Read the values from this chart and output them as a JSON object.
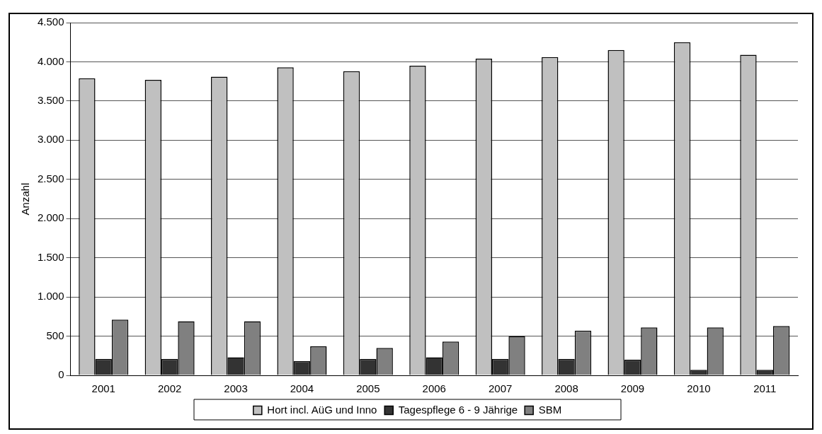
{
  "chart_data": {
    "type": "bar",
    "ylabel": "Anzahl",
    "categories": [
      "2001",
      "2002",
      "2003",
      "2004",
      "2005",
      "2006",
      "2007",
      "2008",
      "2009",
      "2010",
      "2011"
    ],
    "series": [
      {
        "name": "Hort incl. AüG und Inno",
        "color": "#c0c0c0",
        "values": [
          3790,
          3770,
          3810,
          3930,
          3880,
          3950,
          4040,
          4060,
          4150,
          4250,
          4090
        ]
      },
      {
        "name": "Tagespflege 6 - 9 Jährige",
        "color": "#333333",
        "values": [
          210,
          210,
          230,
          180,
          210,
          230,
          210,
          210,
          200,
          70,
          70
        ]
      },
      {
        "name": "SBM",
        "color": "#808080",
        "values": [
          710,
          690,
          690,
          370,
          350,
          430,
          500,
          570,
          610,
          610,
          630
        ]
      }
    ],
    "ylim": [
      0,
      4500
    ],
    "yticks": [
      {
        "value": 0,
        "label": "0"
      },
      {
        "value": 500,
        "label": "500"
      },
      {
        "value": 1000,
        "label": "1.000"
      },
      {
        "value": 1500,
        "label": "1.500"
      },
      {
        "value": 2000,
        "label": "2.000"
      },
      {
        "value": 2500,
        "label": "2.500"
      },
      {
        "value": 3000,
        "label": "3.000"
      },
      {
        "value": 3500,
        "label": "3.500"
      },
      {
        "value": 4000,
        "label": "4.000"
      },
      {
        "value": 4500,
        "label": "4.500"
      }
    ],
    "grid": "y",
    "legend": "bottom"
  }
}
